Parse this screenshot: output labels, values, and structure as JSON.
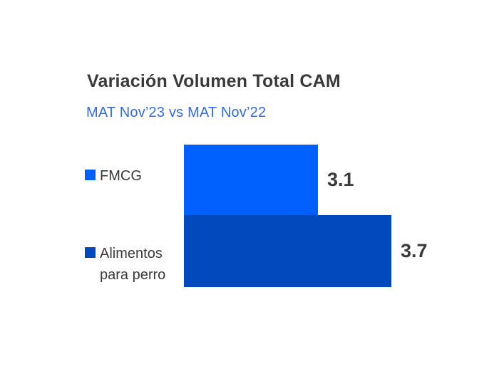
{
  "header": {
    "title": "Variación Volumen Total CAM",
    "subtitle": "MAT Nov’23 vs MAT Nov’22"
  },
  "chart_data": {
    "type": "bar",
    "orientation": "horizontal",
    "title": "Variación Volumen Total CAM",
    "subtitle": "MAT Nov’23 vs MAT Nov’22",
    "categories": [
      "FMCG",
      "Alimentos para perro"
    ],
    "values": [
      3.1,
      3.7
    ],
    "value_labels": [
      "3.1",
      "3.7"
    ],
    "bar_colors": [
      "#0061fe",
      "#0249bd"
    ],
    "xlim": [
      2.0,
      3.7
    ],
    "grid": false,
    "axis_shown": false,
    "legend_position": "left"
  },
  "colors": {
    "background": "#ffffff",
    "title_text": "#3a3a3a",
    "subtitle_text": "#2f6bf2",
    "value_text": "#3a3a3a",
    "fmcg_blue": "#0061fe",
    "alimentos_blue": "#0249bd"
  }
}
